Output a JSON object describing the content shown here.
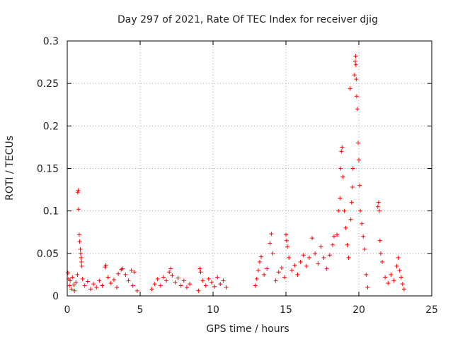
{
  "chart_data": {
    "type": "scatter",
    "title": "Day 297 of 2021, Rate Of TEC Index for receiver djig",
    "xlabel": "GPS time / hours",
    "ylabel": "ROTI / TECUs",
    "xlim": [
      0,
      25
    ],
    "ylim": [
      0,
      0.3
    ],
    "xticks": [
      0,
      5,
      10,
      15,
      20,
      25
    ],
    "xtick_labels": [
      "0",
      "5",
      "10",
      "15",
      "20",
      "25"
    ],
    "yticks": [
      0,
      0.05,
      0.1,
      0.15,
      0.2,
      0.25,
      0.3
    ],
    "ytick_labels": [
      "0",
      "0.05",
      "0.1",
      "0.15",
      "0.2",
      "0.25",
      "0.3"
    ],
    "grid": true,
    "marker": "+",
    "color": "#ff0000",
    "series": [
      {
        "name": "ROTI",
        "points": [
          [
            0.05,
            0.027
          ],
          [
            0.1,
            0.02
          ],
          [
            0.15,
            0.012
          ],
          [
            0.2,
            0.018
          ],
          [
            0.3,
            0.008
          ],
          [
            0.35,
            0.022
          ],
          [
            0.45,
            0.013
          ],
          [
            0.5,
            0.006
          ],
          [
            0.6,
            0.016
          ],
          [
            0.7,
            0.025
          ],
          [
            0.72,
            0.122
          ],
          [
            0.75,
            0.124
          ],
          [
            0.78,
            0.102
          ],
          [
            0.82,
            0.072
          ],
          [
            0.85,
            0.064
          ],
          [
            0.9,
            0.055
          ],
          [
            0.92,
            0.05
          ],
          [
            0.95,
            0.045
          ],
          [
            0.98,
            0.04
          ],
          [
            1.0,
            0.035
          ],
          [
            1.05,
            0.02
          ],
          [
            1.2,
            0.012
          ],
          [
            1.4,
            0.017
          ],
          [
            1.6,
            0.008
          ],
          [
            1.8,
            0.014
          ],
          [
            2.0,
            0.01
          ],
          [
            2.2,
            0.018
          ],
          [
            2.4,
            0.012
          ],
          [
            2.6,
            0.034
          ],
          [
            2.65,
            0.036
          ],
          [
            2.8,
            0.022
          ],
          [
            3.0,
            0.015
          ],
          [
            3.2,
            0.019
          ],
          [
            3.4,
            0.01
          ],
          [
            3.5,
            0.026
          ],
          [
            3.7,
            0.031
          ],
          [
            3.8,
            0.032
          ],
          [
            4.0,
            0.025
          ],
          [
            4.2,
            0.018
          ],
          [
            4.4,
            0.03
          ],
          [
            4.5,
            0.012
          ],
          [
            4.6,
            0.028
          ],
          [
            4.8,
            0.006
          ],
          [
            5.8,
            0.008
          ],
          [
            6.0,
            0.014
          ],
          [
            6.2,
            0.02
          ],
          [
            6.4,
            0.012
          ],
          [
            6.6,
            0.022
          ],
          [
            6.8,
            0.018
          ],
          [
            7.0,
            0.028
          ],
          [
            7.1,
            0.032
          ],
          [
            7.2,
            0.024
          ],
          [
            7.4,
            0.016
          ],
          [
            7.6,
            0.021
          ],
          [
            7.8,
            0.012
          ],
          [
            8.0,
            0.018
          ],
          [
            8.2,
            0.01
          ],
          [
            8.4,
            0.014
          ],
          [
            9.0,
            0.006
          ],
          [
            9.1,
            0.032
          ],
          [
            9.15,
            0.028
          ],
          [
            9.3,
            0.018
          ],
          [
            9.5,
            0.012
          ],
          [
            9.7,
            0.02
          ],
          [
            9.9,
            0.016
          ],
          [
            10.1,
            0.011
          ],
          [
            10.3,
            0.022
          ],
          [
            10.5,
            0.014
          ],
          [
            10.7,
            0.018
          ],
          [
            10.9,
            0.01
          ],
          [
            12.9,
            0.012
          ],
          [
            13.0,
            0.02
          ],
          [
            13.1,
            0.03
          ],
          [
            13.2,
            0.04
          ],
          [
            13.3,
            0.046
          ],
          [
            13.5,
            0.025
          ],
          [
            13.7,
            0.032
          ],
          [
            13.9,
            0.062
          ],
          [
            14.0,
            0.073
          ],
          [
            14.1,
            0.05
          ],
          [
            14.3,
            0.018
          ],
          [
            14.5,
            0.028
          ],
          [
            14.7,
            0.033
          ],
          [
            14.9,
            0.022
          ],
          [
            15.0,
            0.072
          ],
          [
            15.05,
            0.065
          ],
          [
            15.1,
            0.058
          ],
          [
            15.2,
            0.045
          ],
          [
            15.4,
            0.03
          ],
          [
            15.6,
            0.036
          ],
          [
            15.8,
            0.025
          ],
          [
            16.0,
            0.04
          ],
          [
            16.2,
            0.048
          ],
          [
            16.4,
            0.035
          ],
          [
            16.6,
            0.045
          ],
          [
            16.8,
            0.068
          ],
          [
            17.0,
            0.05
          ],
          [
            17.2,
            0.038
          ],
          [
            17.4,
            0.058
          ],
          [
            17.6,
            0.045
          ],
          [
            17.8,
            0.032
          ],
          [
            18.0,
            0.048
          ],
          [
            18.2,
            0.06
          ],
          [
            18.3,
            0.07
          ],
          [
            18.5,
            0.072
          ],
          [
            18.6,
            0.1
          ],
          [
            18.7,
            0.115
          ],
          [
            18.75,
            0.15
          ],
          [
            18.8,
            0.17
          ],
          [
            18.85,
            0.175
          ],
          [
            18.9,
            0.14
          ],
          [
            19.0,
            0.1
          ],
          [
            19.1,
            0.08
          ],
          [
            19.2,
            0.06
          ],
          [
            19.3,
            0.045
          ],
          [
            19.4,
            0.244
          ],
          [
            19.45,
            0.09
          ],
          [
            19.5,
            0.11
          ],
          [
            19.55,
            0.128
          ],
          [
            19.6,
            0.15
          ],
          [
            19.7,
            0.26
          ],
          [
            19.75,
            0.276
          ],
          [
            19.78,
            0.282
          ],
          [
            19.8,
            0.272
          ],
          [
            19.82,
            0.255
          ],
          [
            19.85,
            0.235
          ],
          [
            19.9,
            0.22
          ],
          [
            19.95,
            0.18
          ],
          [
            20.0,
            0.16
          ],
          [
            20.05,
            0.13
          ],
          [
            20.1,
            0.1
          ],
          [
            20.2,
            0.085
          ],
          [
            20.3,
            0.07
          ],
          [
            20.4,
            0.055
          ],
          [
            20.5,
            0.025
          ],
          [
            20.6,
            0.01
          ],
          [
            21.3,
            0.105
          ],
          [
            21.35,
            0.11
          ],
          [
            21.4,
            0.1
          ],
          [
            21.45,
            0.065
          ],
          [
            21.5,
            0.05
          ],
          [
            21.6,
            0.04
          ],
          [
            21.8,
            0.022
          ],
          [
            22.0,
            0.015
          ],
          [
            22.2,
            0.025
          ],
          [
            22.4,
            0.018
          ],
          [
            22.6,
            0.035
          ],
          [
            22.7,
            0.045
          ],
          [
            22.8,
            0.03
          ],
          [
            22.9,
            0.022
          ],
          [
            23.0,
            0.014
          ],
          [
            23.1,
            0.008
          ]
        ]
      }
    ]
  }
}
